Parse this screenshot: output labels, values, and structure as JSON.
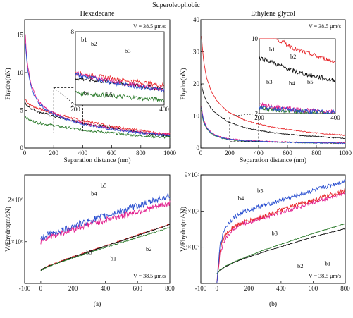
{
  "figure": {
    "title": "Superoleophobic",
    "panel_titles": [
      "Hexadecane",
      "Ethylene glycol"
    ],
    "panel_labels": [
      "(a)",
      "(b)"
    ],
    "speed_note": "V = 38.5 μm/s"
  },
  "colors": {
    "b1": "#e8282c",
    "b2": "#111111",
    "b3": "#2a7a2a",
    "b4": "#e21f8e",
    "b5": "#2a4fd0",
    "fit": "#1a1a1a"
  },
  "chart_data": [
    {
      "id": "top-left",
      "type": "line",
      "title": "Hexadecane",
      "xlabel": "Separation distance (nm)",
      "ylabel": "Fhydro(nN)",
      "xlim": [
        0,
        1000
      ],
      "xticks": [
        0,
        200,
        400,
        600,
        800,
        1000
      ],
      "ylim": [
        0,
        17
      ],
      "yticks": [
        0,
        5,
        10,
        15
      ],
      "annotation": "V = 38.5 μm/s",
      "series": [
        {
          "name": "b1",
          "color": "#e8282c",
          "x": [
            5,
            20,
            50,
            100,
            200,
            300,
            400,
            500,
            600,
            700,
            800,
            900,
            1000
          ],
          "y": [
            6.5,
            6.0,
            5.6,
            5.2,
            4.6,
            4.1,
            3.6,
            3.3,
            2.9,
            2.6,
            2.3,
            2.0,
            1.8
          ]
        },
        {
          "name": "b2",
          "color": "#111111",
          "x": [
            5,
            20,
            50,
            100,
            200,
            300,
            400,
            500,
            600,
            700,
            800,
            900,
            1000
          ],
          "y": [
            6.0,
            5.6,
            5.2,
            4.8,
            4.2,
            3.8,
            3.3,
            3.0,
            2.7,
            2.4,
            2.1,
            1.8,
            1.6
          ]
        },
        {
          "name": "b3",
          "color": "#2a7a2a",
          "x": [
            5,
            20,
            50,
            100,
            200,
            300,
            400,
            500,
            600,
            700,
            800,
            900,
            1000
          ],
          "y": [
            4.2,
            3.9,
            3.6,
            3.3,
            3.0,
            2.7,
            2.4,
            2.2,
            2.0,
            1.8,
            1.6,
            1.5,
            1.4
          ]
        },
        {
          "name": "b4",
          "color": "#e21f8e",
          "x": [
            5,
            10,
            20,
            40,
            70,
            100,
            150,
            200,
            300,
            400,
            500,
            600,
            700,
            800,
            900,
            1000
          ],
          "y": [
            15.0,
            13.2,
            11.0,
            8.8,
            7.1,
            6.1,
            5.2,
            4.6,
            3.8,
            3.3,
            2.9,
            2.6,
            2.3,
            2.1,
            1.9,
            1.8
          ]
        },
        {
          "name": "b5",
          "color": "#2a4fd0",
          "x": [
            5,
            10,
            20,
            40,
            70,
            100,
            150,
            200,
            300,
            400,
            500,
            600,
            700,
            800,
            900,
            1000
          ],
          "y": [
            14.0,
            12.5,
            10.5,
            8.4,
            6.8,
            5.9,
            5.0,
            4.5,
            3.7,
            3.2,
            2.8,
            2.5,
            2.2,
            2.0,
            1.8,
            1.7
          ]
        }
      ],
      "inset": {
        "xlim": [
          200,
          400
        ],
        "xticks": [
          200,
          400
        ],
        "ylim": [
          2,
          8
        ],
        "yticks": [
          2,
          8
        ],
        "labels": [
          "b1",
          "b2",
          "b3",
          "b4",
          "b5"
        ]
      }
    },
    {
      "id": "top-right",
      "type": "line",
      "title": "Ethylene glycol",
      "xlabel": "Separation distance (nm)",
      "ylabel": "Fhydro(nN)",
      "xlim": [
        0,
        1000
      ],
      "xticks": [
        0,
        200,
        400,
        600,
        800,
        1000
      ],
      "ylim": [
        0,
        40
      ],
      "yticks": [
        0,
        10,
        20,
        30,
        40
      ],
      "annotation": "V = 38.5 μm/s",
      "series": [
        {
          "name": "b1",
          "color": "#e8282c",
          "x": [
            5,
            10,
            20,
            40,
            70,
            100,
            150,
            200,
            300,
            400,
            500,
            600,
            700,
            800,
            900,
            1000
          ],
          "y": [
            35.0,
            31.5,
            27.0,
            22.0,
            18.0,
            15.5,
            12.8,
            11.0,
            8.8,
            7.5,
            6.5,
            5.8,
            5.2,
            4.7,
            4.3,
            4.0
          ]
        },
        {
          "name": "b2",
          "color": "#111111",
          "x": [
            5,
            10,
            20,
            40,
            70,
            100,
            150,
            200,
            300,
            400,
            500,
            600,
            700,
            800,
            900,
            1000
          ],
          "y": [
            20.0,
            18.5,
            16.8,
            14.5,
            12.5,
            11.0,
            9.3,
            8.0,
            6.4,
            5.5,
            4.8,
            4.3,
            3.9,
            3.6,
            3.3,
            3.1
          ]
        },
        {
          "name": "b3",
          "color": "#2a7a2a",
          "x": [
            5,
            10,
            20,
            40,
            70,
            100,
            150,
            200,
            300,
            400,
            500,
            600,
            700,
            800,
            900,
            1000
          ],
          "y": [
            12.0,
            10.0,
            8.0,
            6.0,
            4.6,
            3.8,
            3.0,
            2.6,
            2.2,
            2.0,
            1.9,
            1.8,
            1.7,
            1.6,
            1.6,
            1.5
          ]
        },
        {
          "name": "b4",
          "color": "#e21f8e",
          "x": [
            5,
            10,
            20,
            40,
            70,
            100,
            150,
            200,
            300,
            400,
            500,
            600,
            700,
            800,
            900,
            1000
          ],
          "y": [
            13.0,
            11.0,
            8.8,
            6.6,
            5.0,
            4.1,
            3.3,
            2.9,
            2.4,
            2.2,
            2.0,
            1.9,
            1.8,
            1.7,
            1.6,
            1.6
          ]
        },
        {
          "name": "b5",
          "color": "#2a4fd0",
          "x": [
            5,
            10,
            20,
            40,
            70,
            100,
            150,
            200,
            300,
            400,
            500,
            600,
            700,
            800,
            900,
            1000
          ],
          "y": [
            12.5,
            10.5,
            8.4,
            6.3,
            4.8,
            3.9,
            3.1,
            2.7,
            2.3,
            2.1,
            1.9,
            1.8,
            1.7,
            1.6,
            1.6,
            1.5
          ]
        }
      ],
      "inset": {
        "xlim": [
          200,
          400
        ],
        "xticks": [
          200,
          400
        ],
        "ylim": [
          2,
          10
        ],
        "yticks": [
          2,
          10
        ],
        "labels": [
          "b1",
          "b2",
          "b3",
          "b4",
          "b5"
        ]
      }
    },
    {
      "id": "bottom-left",
      "type": "line",
      "xlabel": "",
      "ylabel": "V/Fhydro(m/sN)",
      "xlim": [
        -100,
        800
      ],
      "xticks": [
        -100,
        0,
        200,
        400,
        600,
        800
      ],
      "xtick_labels": [
        "-100",
        "0",
        "200",
        "400",
        "600",
        "800"
      ],
      "ylim": [
        0,
        2600000.0
      ],
      "yticks": [
        0,
        1000000.0,
        2000000.0
      ],
      "annotation": "V = 38.5 μm/s",
      "panel_label": "(a)",
      "series": [
        {
          "name": "b1",
          "color": "#e8282c",
          "x": [
            0,
            10,
            50,
            100,
            200,
            300,
            400,
            500,
            600,
            700,
            800
          ],
          "y": [
            320000.0,
            350000.0,
            430000.0,
            500000.0,
            640000.0,
            770000.0,
            900000.0,
            1030000.0,
            1160000.0,
            1290000.0,
            1420000.0
          ]
        },
        {
          "name": "b2",
          "color": "#111111",
          "x": [
            0,
            10,
            50,
            100,
            200,
            300,
            400,
            500,
            600,
            700,
            800
          ],
          "y": [
            310000.0,
            340000.0,
            420000.0,
            490000.0,
            630000.0,
            760000.0,
            890000.0,
            1020000.0,
            1150000.0,
            1280000.0,
            1410000.0
          ]
        },
        {
          "name": "b3",
          "color": "#2a7a2a",
          "x": [
            0,
            10,
            50,
            100,
            200,
            300,
            400,
            500,
            600,
            700,
            800
          ],
          "y": [
            300000.0,
            330000.0,
            410000.0,
            480000.0,
            610000.0,
            740000.0,
            860000.0,
            980000.0,
            1100000.0,
            1220000.0,
            1340000.0
          ]
        },
        {
          "name": "b4",
          "color": "#e21f8e",
          "x": [
            0,
            10,
            50,
            100,
            200,
            300,
            400,
            500,
            600,
            700,
            800
          ],
          "y": [
            1000000.0,
            1050000.0,
            1120000.0,
            1180000.0,
            1300000.0,
            1420000.0,
            1520000.0,
            1620000.0,
            1720000.0,
            1820000.0,
            1920000.0
          ]
        },
        {
          "name": "b5",
          "color": "#2a4fd0",
          "x": [
            0,
            10,
            50,
            100,
            200,
            300,
            400,
            500,
            600,
            700,
            800
          ],
          "y": [
            1050000.0,
            1100000.0,
            1170000.0,
            1240000.0,
            1370000.0,
            1500000.0,
            1620000.0,
            1740000.0,
            1860000.0,
            1980000.0,
            2100000.0
          ]
        }
      ]
    },
    {
      "id": "bottom-right",
      "type": "line",
      "xlabel": "",
      "ylabel": "V/Fhydro(m/sN)",
      "xlim": [
        -100,
        800
      ],
      "xticks": [
        -100,
        0,
        200,
        400,
        600,
        800
      ],
      "xtick_labels": [
        "-100",
        "0",
        "200",
        "400",
        "600",
        "800"
      ],
      "ylim": [
        0,
        9000.0
      ],
      "yticks": [
        0,
        3000.0,
        6000.0,
        9000.0
      ],
      "annotation": "V = 38.5 μm/s",
      "panel_label": "(b)",
      "series": [
        {
          "name": "b1",
          "color": "#111111",
          "x": [
            0,
            20,
            50,
            100,
            200,
            300,
            400,
            500,
            600,
            700,
            800
          ],
          "y": [
            800,
            1100,
            1350,
            1700,
            2200,
            2650,
            3050,
            3450,
            3850,
            4200,
            4550
          ]
        },
        {
          "name": "b2",
          "color": "#2a7a2a",
          "x": [
            0,
            20,
            50,
            100,
            200,
            300,
            400,
            500,
            600,
            700,
            800
          ],
          "y": [
            800,
            1150,
            1400,
            1750,
            2300,
            2800,
            3250,
            3700,
            4150,
            4550,
            4950
          ]
        },
        {
          "name": "b3",
          "color": "#e21f8e",
          "x": [
            0,
            20,
            50,
            100,
            150,
            200,
            300,
            400,
            500,
            600,
            700,
            800
          ],
          "y": [
            0,
            2500,
            3600,
            4500,
            4900,
            5100,
            5500,
            5900,
            6300,
            6700,
            7100,
            7500
          ]
        },
        {
          "name": "b4",
          "color": "#e8282c",
          "x": [
            0,
            20,
            50,
            100,
            150,
            200,
            300,
            400,
            500,
            600,
            700,
            800
          ],
          "y": [
            0,
            2800,
            4000,
            4700,
            5000,
            5200,
            5600,
            6100,
            6500,
            6900,
            7300,
            7700
          ]
        },
        {
          "name": "b5",
          "color": "#2a4fd0",
          "x": [
            0,
            20,
            50,
            100,
            150,
            200,
            300,
            400,
            500,
            600,
            700,
            800
          ],
          "y": [
            0,
            3200,
            4600,
            5400,
            5800,
            6100,
            6500,
            6900,
            7300,
            7700,
            8100,
            8500
          ]
        }
      ]
    }
  ]
}
